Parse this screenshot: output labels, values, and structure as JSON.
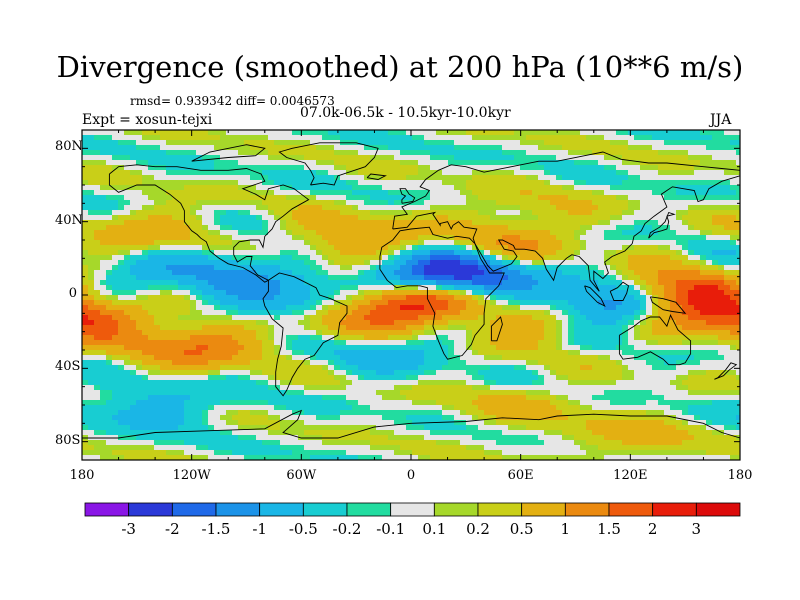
{
  "title": "Divergence (smoothed) at 200 hPa (10**6 m/s)",
  "stats_text": "rmsd= 0.939342 diff= 0.0046573",
  "experiment": "Expt = xosun-tejxi",
  "period": "07.0k-06.5k - 10.5kyr-10.0kyr",
  "season": "JJA",
  "y_axis": {
    "ticks": [
      "80N",
      "40N",
      "0",
      "40S",
      "80S"
    ]
  },
  "x_axis": {
    "ticks": [
      "180",
      "120W",
      "60W",
      "0",
      "60E",
      "120E",
      "180"
    ]
  },
  "colorbar": {
    "labels": [
      "-3",
      "-2",
      "-1.5",
      "-1",
      "-0.5",
      "-0.2",
      "-0.1",
      "0.1",
      "0.2",
      "0.5",
      "1",
      "1.5",
      "2",
      "3"
    ],
    "colors": [
      "#8a16e6",
      "#2b39d8",
      "#1f69e8",
      "#1c93e8",
      "#1ab6e6",
      "#18cdd2",
      "#22dca0",
      "#e6e6e6",
      "#a6d82a",
      "#c9cf18",
      "#e3b012",
      "#eb8a10",
      "#ee5a0c",
      "#e81d0a",
      "#dc0a0a"
    ]
  },
  "chart_data": {
    "type": "heatmap",
    "field": "Divergence (smoothed) at 200 hPa",
    "units": "10**6 m/s",
    "lon_range": [
      -180,
      180
    ],
    "lat_range": [
      -90,
      90
    ],
    "levels": [
      -3,
      -2,
      -1.5,
      -1,
      -0.5,
      -0.2,
      -0.1,
      0.1,
      0.2,
      0.5,
      1,
      1.5,
      2,
      3
    ],
    "features": [
      {
        "name": "strong_divergence_equatorial_atlantic",
        "lon": -3,
        "lat": -3,
        "value": 3.2
      },
      {
        "name": "convergence_north_africa",
        "lon": 5,
        "lat": 8,
        "value": -2.2
      },
      {
        "name": "divergence_west_pacific",
        "lon": 145,
        "lat": 0,
        "value": 2.6
      },
      {
        "name": "convergence_maritime_continent",
        "lon": 110,
        "lat": -5,
        "value": -2.4
      },
      {
        "name": "divergence_east_pacific",
        "lon": -175,
        "lat": -10,
        "value": 2.2
      },
      {
        "name": "divergence_south_pacific",
        "lon": -120,
        "lat": -28,
        "value": 1.4
      },
      {
        "name": "convergence_east_pacific",
        "lon": -160,
        "lat": 0,
        "value": -1.2
      },
      {
        "name": "convergence_south_america",
        "lon": -60,
        "lat": -5,
        "value": -1.4
      },
      {
        "name": "divergence_south_america",
        "lon": -45,
        "lat": -15,
        "value": 0.9
      },
      {
        "name": "convergence_central_america",
        "lon": -100,
        "lat": 15,
        "value": -1.0
      },
      {
        "name": "divergence_north_atlantic",
        "lon": -30,
        "lat": 30,
        "value": 1.1
      },
      {
        "name": "divergence_north_pacific",
        "lon": -140,
        "lat": 35,
        "value": 0.7
      },
      {
        "name": "divergence_arabia",
        "lon": 55,
        "lat": 25,
        "value": 0.9
      },
      {
        "name": "convergence_east_africa",
        "lon": 35,
        "lat": 12,
        "value": -1.5
      },
      {
        "name": "divergence_indian_ocean",
        "lon": 75,
        "lat": -15,
        "value": 1.0
      },
      {
        "name": "convergence_south_atlantic",
        "lon": -15,
        "lat": -30,
        "value": -0.7
      },
      {
        "name": "divergence_central_asia",
        "lon": 60,
        "lat": 45,
        "value": 0.5
      },
      {
        "name": "convergence_southern_ocean",
        "lon": -140,
        "lat": -60,
        "value": -0.8
      },
      {
        "name": "divergence_southern_ocean",
        "lon": 60,
        "lat": -60,
        "value": 0.5
      },
      {
        "name": "divergence_antarctica",
        "lon": 120,
        "lat": -78,
        "value": 0.6
      }
    ]
  }
}
